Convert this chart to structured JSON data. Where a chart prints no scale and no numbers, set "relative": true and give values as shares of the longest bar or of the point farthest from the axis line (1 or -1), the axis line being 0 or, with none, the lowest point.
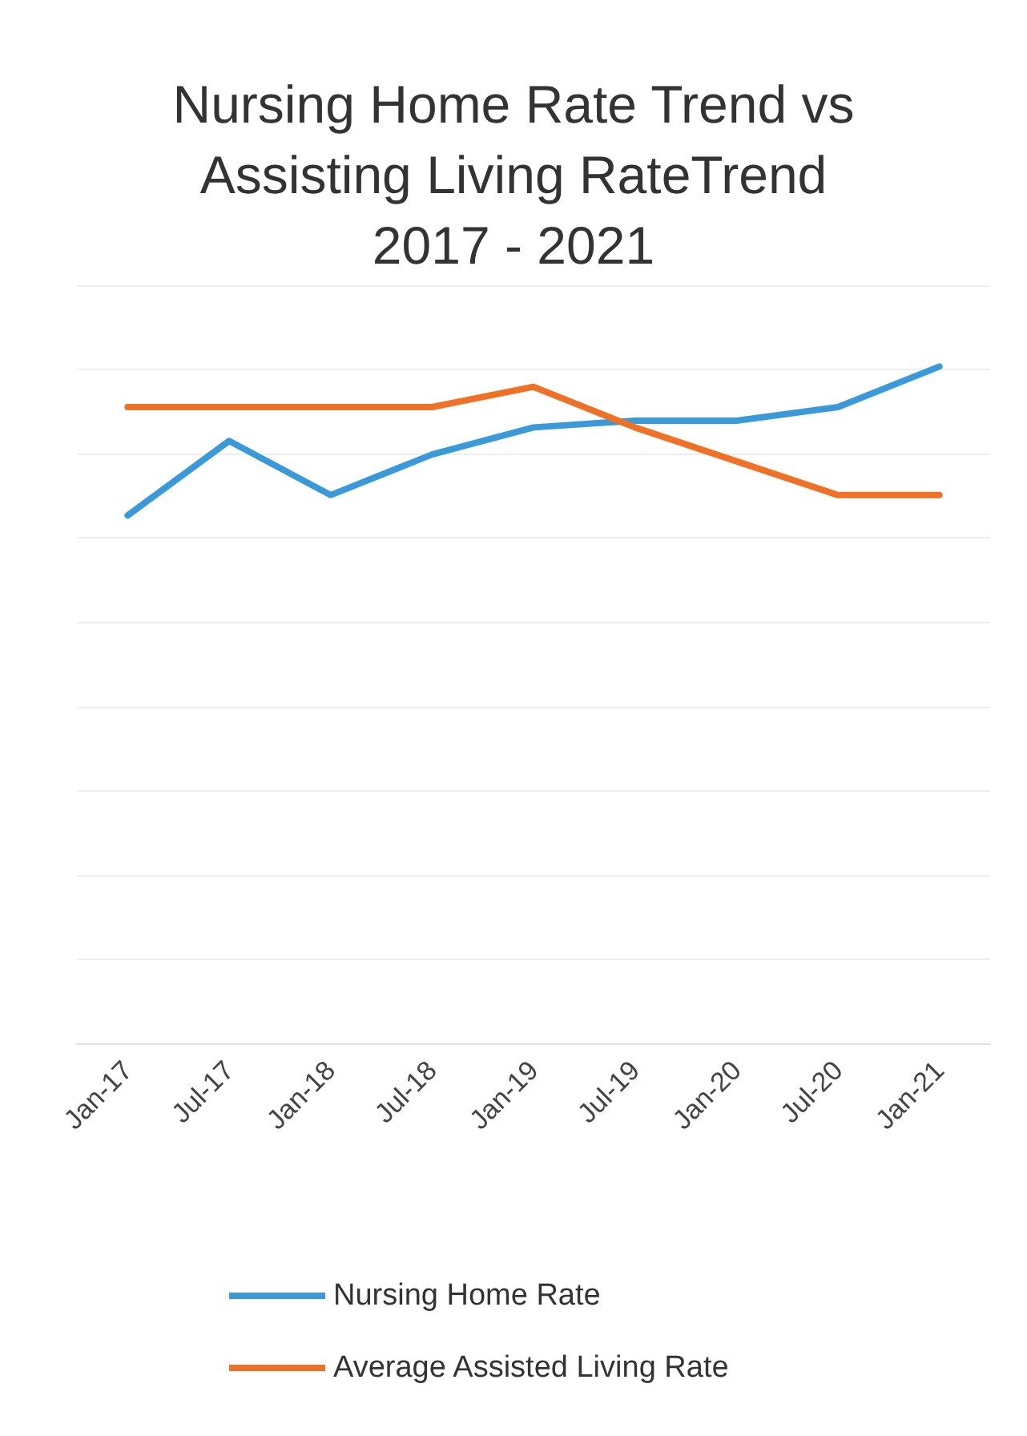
{
  "chart_data": {
    "type": "line",
    "title": "Nursing Home Rate Trend vs\nAssisting Living RateTrend\n2017 - 2021",
    "relative": true,
    "categories": [
      "Jan-17",
      "Jul-17",
      "Jan-18",
      "Jul-18",
      "Jan-19",
      "Jul-19",
      "Jan-20",
      "Jul-20",
      "Jan-21"
    ],
    "series": [
      {
        "name": "Nursing Home Rate",
        "color": "#3a9ad9",
        "values": [
          0.78,
          0.89,
          0.81,
          0.87,
          0.91,
          0.92,
          0.92,
          0.94,
          1
        ]
      },
      {
        "name": "Average Assisted Living Rate",
        "color": "#f07026",
        "values": [
          0.94,
          0.94,
          0.94,
          0.94,
          0.97,
          0.91,
          0.86,
          0.81,
          0.81
        ]
      }
    ],
    "grid": "y",
    "legend": "bottom",
    "marker": "none",
    "line_style": "solid"
  }
}
